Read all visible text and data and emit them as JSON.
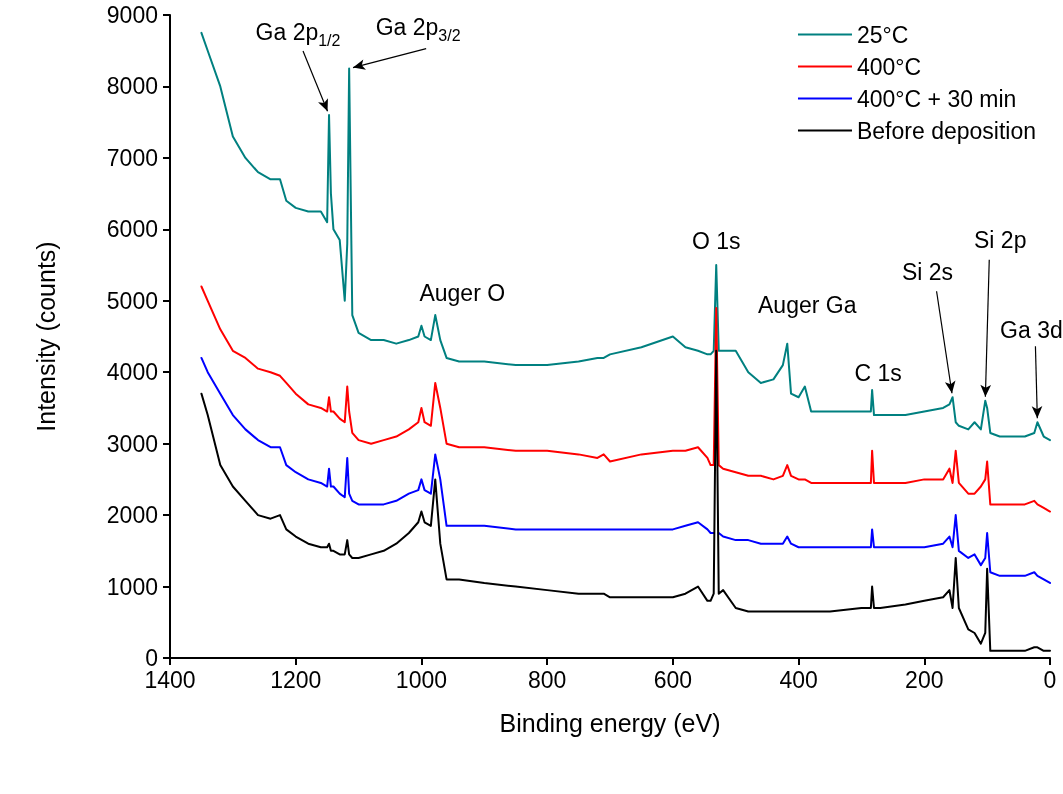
{
  "chart_data": {
    "type": "line",
    "xlabel": "Binding energy (eV)",
    "ylabel": "Intensity (counts)",
    "xlim": [
      1400,
      0
    ],
    "xticks": [
      1400,
      1200,
      1000,
      800,
      600,
      400,
      200,
      0
    ],
    "ylim": [
      0,
      9000
    ],
    "yticks": [
      0,
      1000,
      2000,
      3000,
      4000,
      5000,
      6000,
      7000,
      8000,
      9000
    ],
    "grid": false,
    "legend": "top right",
    "marker": "none",
    "line_style": "solid",
    "x": [
      1350,
      1340,
      1320,
      1300,
      1280,
      1260,
      1240,
      1225,
      1215,
      1200,
      1180,
      1160,
      1150,
      1147,
      1144,
      1140,
      1130,
      1122,
      1118,
      1115,
      1110,
      1100,
      1080,
      1060,
      1040,
      1020,
      1005,
      1000,
      995,
      985,
      978,
      970,
      960,
      940,
      900,
      850,
      800,
      750,
      720,
      710,
      700,
      650,
      600,
      580,
      560,
      545,
      540,
      535,
      531,
      527,
      520,
      500,
      480,
      460,
      440,
      425,
      418,
      412,
      400,
      390,
      380,
      350,
      300,
      285,
      283,
      280,
      270,
      230,
      200,
      170,
      160,
      155,
      150,
      145,
      130,
      120,
      110,
      103,
      100,
      95,
      80,
      60,
      40,
      25,
      20,
      10,
      0
    ],
    "series": [
      {
        "name": "25°C",
        "color": "#008080",
        "values": [
          8750,
          8500,
          8000,
          7300,
          7000,
          6800,
          6700,
          6700,
          6400,
          6300,
          6250,
          6250,
          6100,
          7600,
          6500,
          6000,
          5850,
          5000,
          5800,
          8250,
          4800,
          4550,
          4450,
          4450,
          4400,
          4450,
          4500,
          4650,
          4500,
          4450,
          4800,
          4450,
          4200,
          4150,
          4150,
          4100,
          4100,
          4150,
          4200,
          4200,
          4250,
          4350,
          4500,
          4350,
          4300,
          4250,
          4250,
          4300,
          5500,
          4300,
          4300,
          4300,
          4000,
          3850,
          3900,
          4100,
          4400,
          3700,
          3650,
          3800,
          3450,
          3450,
          3450,
          3450,
          3750,
          3400,
          3400,
          3400,
          3450,
          3500,
          3550,
          3650,
          3300,
          3250,
          3200,
          3300,
          3200,
          3600,
          3500,
          3150,
          3100,
          3100,
          3100,
          3150,
          3300,
          3100,
          3050
        ]
      },
      {
        "name": "400°C",
        "color": "#ff0000",
        "values": [
          5200,
          5000,
          4600,
          4300,
          4200,
          4050,
          4000,
          3950,
          3850,
          3700,
          3550,
          3500,
          3450,
          3650,
          3450,
          3450,
          3350,
          3300,
          3800,
          3450,
          3150,
          3050,
          3000,
          3050,
          3100,
          3200,
          3300,
          3500,
          3300,
          3250,
          3850,
          3500,
          3000,
          2950,
          2950,
          2900,
          2900,
          2850,
          2800,
          2850,
          2750,
          2850,
          2900,
          2900,
          2950,
          2800,
          2700,
          2700,
          4900,
          2700,
          2650,
          2600,
          2550,
          2550,
          2500,
          2550,
          2700,
          2550,
          2500,
          2500,
          2450,
          2450,
          2450,
          2450,
          2900,
          2450,
          2450,
          2450,
          2500,
          2500,
          2650,
          2450,
          2900,
          2450,
          2300,
          2300,
          2400,
          2500,
          2750,
          2150,
          2150,
          2150,
          2150,
          2200,
          2150,
          2100,
          2050
        ]
      },
      {
        "name": "400°C + 30 min",
        "color": "#0000ff",
        "values": [
          4200,
          4000,
          3700,
          3400,
          3200,
          3050,
          2950,
          2950,
          2700,
          2600,
          2500,
          2450,
          2400,
          2650,
          2400,
          2400,
          2300,
          2250,
          2800,
          2300,
          2200,
          2150,
          2150,
          2150,
          2200,
          2300,
          2350,
          2500,
          2350,
          2300,
          2850,
          2500,
          1850,
          1850,
          1850,
          1800,
          1800,
          1800,
          1800,
          1800,
          1800,
          1800,
          1800,
          1850,
          1900,
          1800,
          1750,
          1750,
          null,
          1750,
          1700,
          1650,
          1650,
          1600,
          1600,
          1600,
          1700,
          1600,
          1550,
          1550,
          1550,
          1550,
          1550,
          1550,
          1800,
          1550,
          1550,
          1550,
          1550,
          1600,
          1700,
          1550,
          2000,
          1500,
          1400,
          1450,
          1300,
          1400,
          1750,
          1200,
          1150,
          1150,
          1150,
          1200,
          1150,
          1100,
          1050
        ]
      },
      {
        "name": "Before deposition",
        "color": "#000000",
        "values": [
          3700,
          3400,
          2700,
          2400,
          2200,
          2000,
          1950,
          2000,
          1800,
          1700,
          1600,
          1550,
          1550,
          1600,
          1500,
          1500,
          1450,
          1450,
          1650,
          1450,
          1400,
          1400,
          1450,
          1500,
          1600,
          1750,
          1900,
          2050,
          1900,
          1850,
          2500,
          1600,
          1100,
          1100,
          1050,
          1000,
          950,
          900,
          900,
          900,
          850,
          850,
          850,
          900,
          1000,
          800,
          800,
          900,
          4300,
          900,
          950,
          700,
          650,
          650,
          650,
          650,
          650,
          650,
          650,
          650,
          650,
          650,
          700,
          700,
          1000,
          700,
          700,
          750,
          800,
          850,
          950,
          700,
          1400,
          700,
          400,
          350,
          200,
          350,
          1250,
          100,
          100,
          100,
          100,
          150,
          150,
          100,
          100
        ]
      }
    ],
    "annotations": [
      {
        "text": "Ga 2p$_{1/2}$",
        "x": 1147,
        "y": 7600
      },
      {
        "text": "Ga 2p$_{3/2}$",
        "x": 1115,
        "y": 8250
      },
      {
        "text": "Auger O",
        "x": 978,
        "y": 4800
      },
      {
        "text": "O 1s",
        "x": 531,
        "y": 5500
      },
      {
        "text": "Auger Ga",
        "x": 418,
        "y": 4400
      },
      {
        "text": "C 1s",
        "x": 283,
        "y": 3750
      },
      {
        "text": "Si 2s",
        "x": 155,
        "y": 3650
      },
      {
        "text": "Si 2p",
        "x": 103,
        "y": 3600
      },
      {
        "text": "Ga 3d",
        "x": 20,
        "y": 3300
      }
    ]
  }
}
